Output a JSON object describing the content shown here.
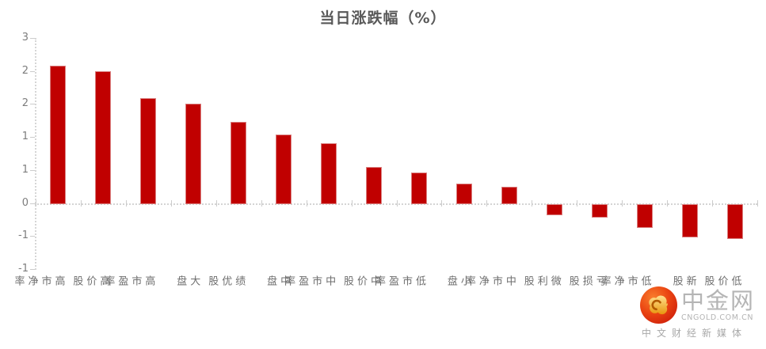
{
  "chart_data": {
    "type": "bar",
    "title": "当日涨跌幅（%）",
    "categories": [
      "高市净率",
      "高价股",
      "高市盈率",
      "大盘",
      "绩优股",
      "中盘",
      "中市盈率",
      "中价股",
      "低市盈率",
      "小盘",
      "中市净率",
      "微利股",
      "亏损股",
      "低市净率",
      "新股",
      "低价股"
    ],
    "values": [
      2.5,
      2.4,
      1.9,
      1.81,
      1.48,
      1.25,
      1.08,
      0.65,
      0.56,
      0.35,
      0.29,
      -0.2,
      -0.24,
      -0.42,
      -0.6,
      -0.63
    ],
    "bar_color": "#c00000",
    "ylim": [
      -1.2,
      3.0
    ],
    "ytick_step": 0.6,
    "yticks": [
      {
        "value": 3.0,
        "label": "3"
      },
      {
        "value": 2.4,
        "label": "2"
      },
      {
        "value": 1.8,
        "label": "2"
      },
      {
        "value": 1.2,
        "label": "1"
      },
      {
        "value": 0.6,
        "label": "1"
      },
      {
        "value": 0.0,
        "label": "0"
      },
      {
        "value": -0.6,
        "label": "-1"
      },
      {
        "value": -1.2,
        "label": "-1"
      }
    ],
    "grid": false,
    "legend": false,
    "xlabel": "",
    "ylabel": ""
  },
  "watermark": {
    "brand": "中金网",
    "domain": "CNGOLD.COM.CN",
    "tagline": "中文财经新媒体",
    "logo_icon": "gold-cloud-swirl-badge"
  }
}
